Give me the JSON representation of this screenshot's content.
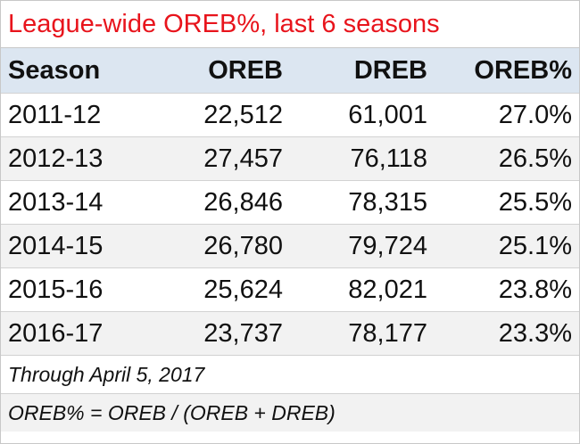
{
  "title": "League-wide OREB%, last 6 seasons",
  "colors": {
    "title_red": "#e8141c",
    "header_blue": "#dce6f1",
    "band_gray": "#f2f2f2"
  },
  "table": {
    "columns": [
      "Season",
      "OREB",
      "DREB",
      "OREB%"
    ],
    "rows": [
      [
        "2011-12",
        "22,512",
        "61,001",
        "27.0%"
      ],
      [
        "2012-13",
        "27,457",
        "76,118",
        "26.5%"
      ],
      [
        "2013-14",
        "26,846",
        "78,315",
        "25.5%"
      ],
      [
        "2014-15",
        "26,780",
        "79,724",
        "25.1%"
      ],
      [
        "2015-16",
        "25,624",
        "82,021",
        "23.8%"
      ],
      [
        "2016-17",
        "23,737",
        "78,177",
        "23.3%"
      ]
    ]
  },
  "notes": {
    "date_note": "Through April 5, 2017",
    "formula_note": "OREB% = OREB / (OREB + DREB)"
  }
}
